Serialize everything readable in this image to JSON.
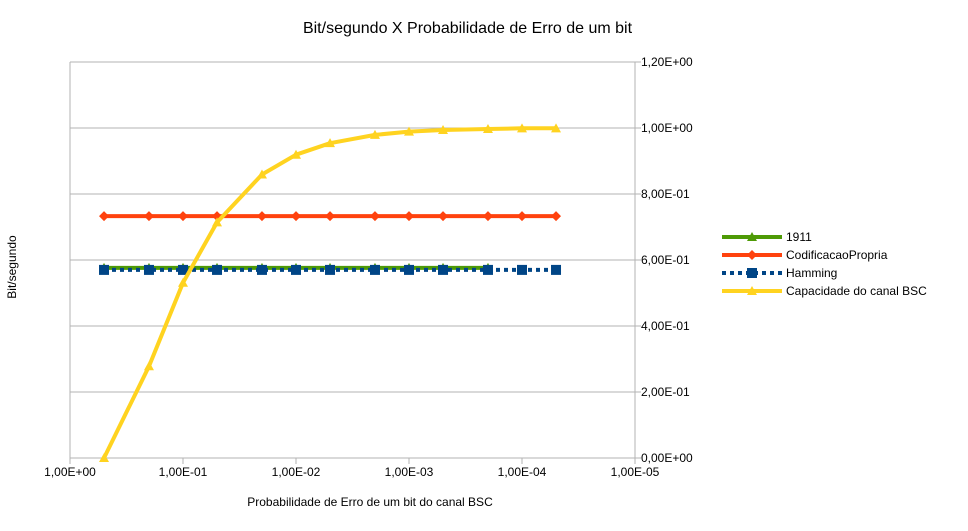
{
  "chart_data": {
    "type": "line",
    "title": "Bit/segundo X Probabilidade de Erro de um bit",
    "xlabel": "Probabilidade de Erro de um bit  do canal BSC",
    "ylabel": "Bit/segundo",
    "x_scale": "log",
    "x_reversed": true,
    "xlim": [
      1,
      1e-05
    ],
    "ylim": [
      0,
      1.2
    ],
    "y_axis_side": "right",
    "grid": "horizontal",
    "legend": "right",
    "x_ticks": [
      "1,00E+00",
      "1,00E-01",
      "1,00E-02",
      "1,00E-03",
      "1,00E-04",
      "1,00E-05"
    ],
    "x_tick_values": [
      1,
      0.1,
      0.01,
      0.001,
      0.0001,
      1e-05
    ],
    "y_ticks": [
      "0,00E+00",
      "2,00E-01",
      "4,00E-01",
      "6,00E-01",
      "8,00E-01",
      "1,00E+00",
      "1,20E+00"
    ],
    "y_tick_values": [
      0,
      0.2,
      0.4,
      0.6,
      0.8,
      1.0,
      1.2
    ],
    "series": [
      {
        "name": "1911",
        "color": "#4e9a06",
        "marker": "triangle",
        "dash": "solid",
        "x": [
          0.5,
          0.2,
          0.1,
          0.05,
          0.02,
          0.01,
          0.005,
          0.002,
          0.001,
          0.0005,
          0.0002
        ],
        "y": [
          0.576,
          0.576,
          0.576,
          0.576,
          0.576,
          0.576,
          0.576,
          0.576,
          0.576,
          0.576,
          0.576
        ]
      },
      {
        "name": "CodificacaoPropria",
        "color": "#ff420e",
        "marker": "diamond",
        "dash": "solid",
        "x": [
          0.5,
          0.2,
          0.1,
          0.05,
          0.02,
          0.01,
          0.005,
          0.002,
          0.001,
          0.0005,
          0.0002,
          0.0001,
          5e-05
        ],
        "y": [
          0.733,
          0.733,
          0.733,
          0.733,
          0.733,
          0.733,
          0.733,
          0.733,
          0.733,
          0.733,
          0.733,
          0.733,
          0.733
        ]
      },
      {
        "name": "Hamming",
        "color": "#004586",
        "marker": "square",
        "dash": "dotted",
        "x": [
          0.5,
          0.2,
          0.1,
          0.05,
          0.02,
          0.01,
          0.005,
          0.002,
          0.001,
          0.0005,
          0.0002,
          0.0001,
          5e-05
        ],
        "y": [
          0.57,
          0.57,
          0.57,
          0.57,
          0.57,
          0.57,
          0.57,
          0.57,
          0.57,
          0.57,
          0.57,
          0.57,
          0.57
        ]
      },
      {
        "name": "Capacidade do canal BSC",
        "color": "#ffd320",
        "marker": "triangle",
        "dash": "solid",
        "x": [
          0.5,
          0.2,
          0.1,
          0.05,
          0.02,
          0.01,
          0.005,
          0.002,
          0.001,
          0.0005,
          0.0002,
          0.0001,
          5e-05
        ],
        "y": [
          0.0,
          0.278,
          0.531,
          0.714,
          0.859,
          0.919,
          0.954,
          0.979,
          0.989,
          0.994,
          0.997,
          0.999,
          0.999
        ]
      }
    ]
  }
}
